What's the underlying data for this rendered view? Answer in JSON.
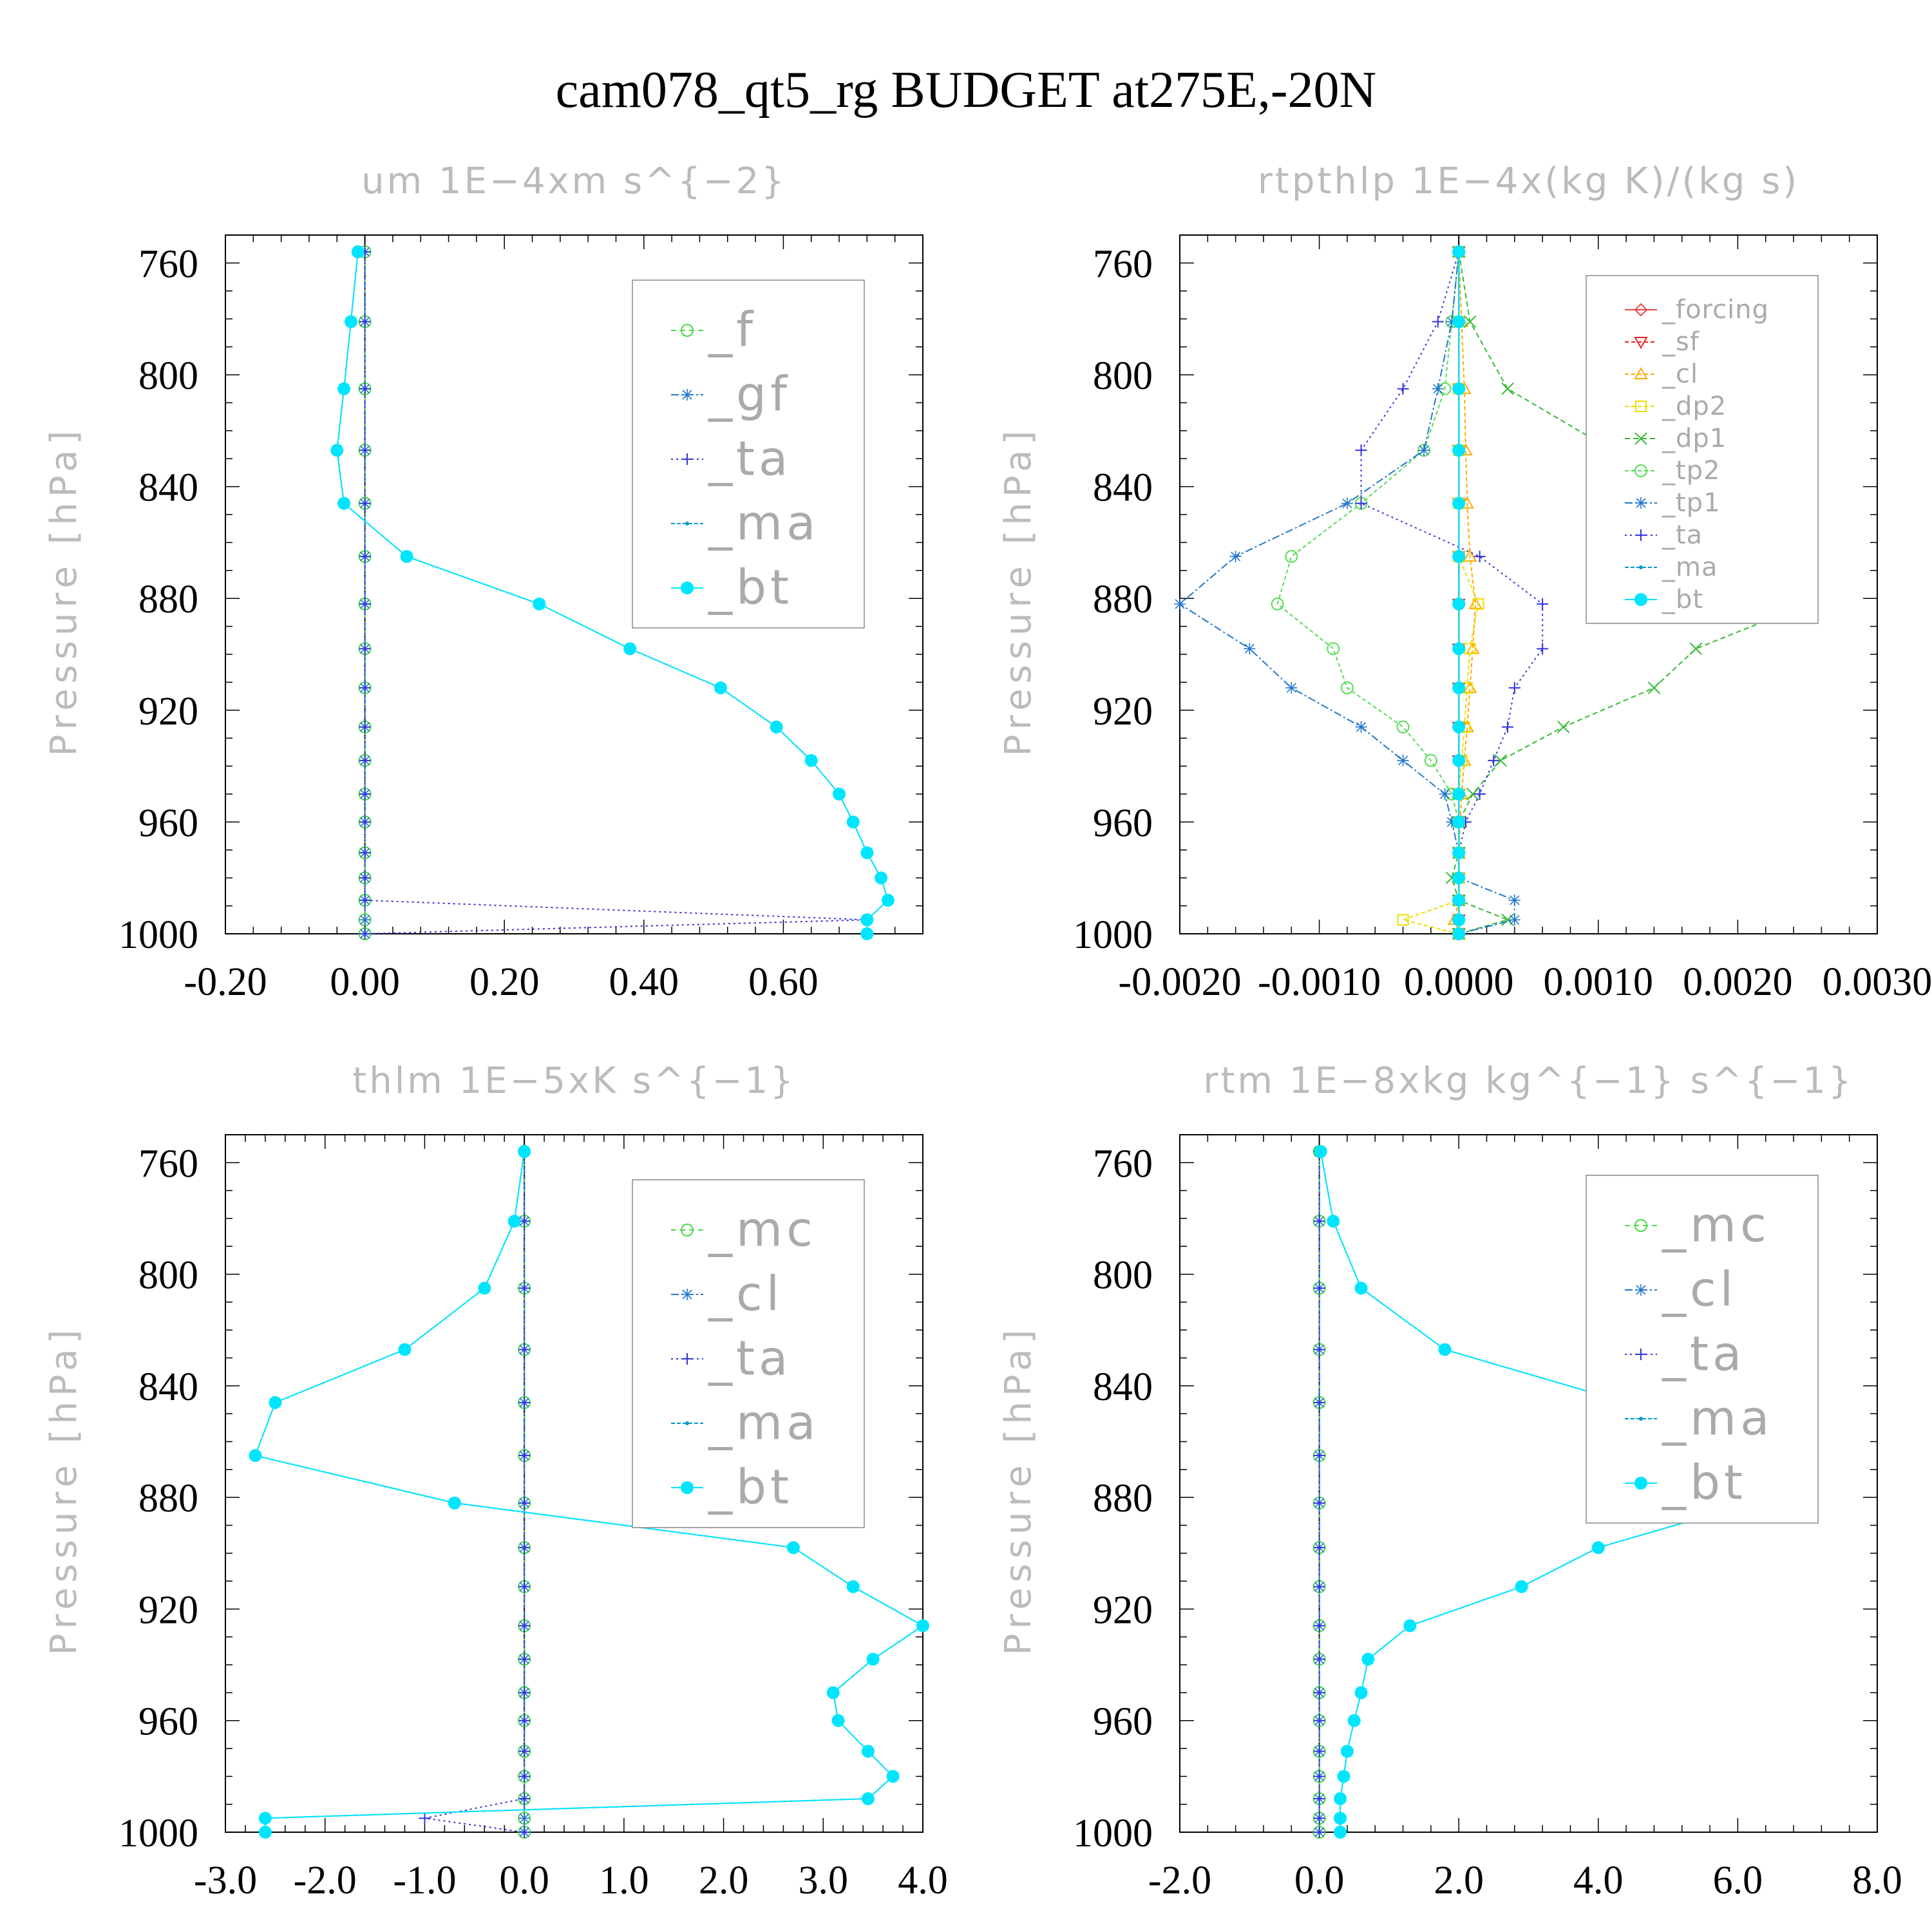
{
  "title": "cam078_qt5_rg  BUDGET at275E,-20N",
  "colors": {
    "_f": "#44dd44",
    "_gf": "#2277cc",
    "_ta": "#3333dd",
    "_ma": "#0099cc",
    "_bt": "#00e5ff",
    "_mc": "#44dd44",
    "_cl_thlm": "#2277cc",
    "_forcing": "#ee4444",
    "_sf": "#ee2222",
    "_cl": "#ffaa00",
    "_dp2": "#eedd00",
    "_dp1": "#33bb33",
    "_tp2": "#55dd55",
    "_tp1": "#2277cc",
    "axis": "#000000",
    "faint_label": "#bbbbbb",
    "legend_text": "#aaaaaa"
  },
  "chart_data": [
    {
      "type": "line",
      "title": "um  1E−4xm s^{−2}",
      "ylabel": "Pressure [hPa]",
      "xlabel": "",
      "xlim": [
        -0.2,
        0.8
      ],
      "ylim": [
        1000,
        750
      ],
      "yticks": [
        760,
        800,
        840,
        880,
        920,
        960,
        1000
      ],
      "ytick_labels": [
        "760",
        "800",
        "840",
        "880",
        "920",
        "960",
        "1000"
      ],
      "xticks": [
        -0.2,
        0.0,
        0.2,
        0.4,
        0.6
      ],
      "xtick_labels": [
        "-0.20",
        "0.00",
        "0.20",
        "0.40",
        "0.60"
      ],
      "legend": {
        "placement": "top-right",
        "font_size": "large",
        "entries": [
          "_f",
          "_gf",
          "_ta",
          "_ma",
          "_bt"
        ]
      },
      "y": [
        756,
        781,
        805,
        827,
        846,
        865,
        882,
        898,
        912,
        926,
        938,
        950,
        960,
        971,
        980,
        988,
        995,
        1000
      ],
      "series": [
        {
          "name": "_f",
          "marker": "circle",
          "dash": "8,6",
          "values": [
            0,
            0,
            0,
            0,
            0,
            0,
            0,
            0,
            0,
            0,
            0,
            0,
            0,
            0,
            0,
            0,
            0,
            0
          ]
        },
        {
          "name": "_gf",
          "marker": "star",
          "dash": "12,4,3,4",
          "values": [
            0,
            0,
            0,
            0,
            0,
            0,
            0,
            0,
            0,
            0,
            0,
            0,
            0,
            0,
            0,
            0,
            0,
            0
          ]
        },
        {
          "name": "_ta",
          "marker": "plus",
          "dash": "3,5",
          "values": [
            0,
            0,
            0,
            0,
            0,
            0,
            0,
            0,
            0,
            0,
            0,
            0,
            0,
            0,
            0,
            0,
            0.72,
            0
          ]
        },
        {
          "name": "_ma",
          "marker": "dot",
          "dash": "6,3",
          "values": [
            -0.01,
            -0.02,
            -0.03,
            -0.04,
            -0.03,
            0.06,
            0.25,
            0.38,
            0.51,
            0.59,
            0.64,
            0.68,
            0.7,
            0.72,
            0.74,
            0.75,
            0.72,
            0.72
          ]
        },
        {
          "name": "_bt",
          "marker": "filled",
          "dash": "",
          "values": [
            -0.01,
            -0.02,
            -0.03,
            -0.04,
            -0.03,
            0.06,
            0.25,
            0.38,
            0.51,
            0.59,
            0.64,
            0.68,
            0.7,
            0.72,
            0.74,
            0.75,
            0.72,
            0.72
          ]
        }
      ]
    },
    {
      "type": "line",
      "title": "rtpthlp  1E−4x(kg K)/(kg s)",
      "ylabel": "Pressure [hPa]",
      "xlabel": "",
      "xlim": [
        -0.002,
        0.003
      ],
      "ylim": [
        1000,
        750
      ],
      "yticks": [
        760,
        800,
        840,
        880,
        920,
        960,
        1000
      ],
      "ytick_labels": [
        "760",
        "800",
        "840",
        "880",
        "920",
        "960",
        "1000"
      ],
      "xticks": [
        -0.002,
        -0.001,
        0.0,
        0.001,
        0.002,
        0.003
      ],
      "xtick_labels": [
        "-0.0020",
        "-0.0010",
        "0.0000",
        "0.0010",
        "0.0020",
        "0.0030"
      ],
      "legend": {
        "placement": "top-right",
        "font_size": "small",
        "entries": [
          "_forcing",
          "_sf",
          "_cl",
          "_dp2",
          "_dp1",
          "_tp2",
          "_tp1",
          "_ta",
          "_ma",
          "_bt"
        ]
      },
      "y": [
        756,
        781,
        805,
        827,
        846,
        865,
        882,
        898,
        912,
        926,
        938,
        950,
        960,
        971,
        980,
        988,
        995,
        1000
      ],
      "series": [
        {
          "name": "_forcing",
          "marker": "diamond",
          "dash": "",
          "values": [
            0,
            0,
            0,
            0,
            0,
            0,
            0,
            0,
            0,
            0,
            0,
            0,
            0,
            0,
            0,
            0,
            0,
            0
          ]
        },
        {
          "name": "_sf",
          "marker": "tri-down",
          "dash": "6,4",
          "values": [
            0,
            0,
            0,
            0,
            0,
            0,
            0,
            0,
            0,
            0,
            0,
            0,
            0,
            0,
            0,
            0,
            0,
            0
          ]
        },
        {
          "name": "_cl",
          "marker": "tri-up",
          "dash": "6,4",
          "values": [
            0,
            2e-05,
            4e-05,
            5e-05,
            6e-05,
            8e-05,
            0.00012,
            0.0001,
            8e-05,
            6e-05,
            4e-05,
            2e-05,
            1e-05,
            0,
            0,
            0,
            -3e-05,
            0
          ]
        },
        {
          "name": "_dp2",
          "marker": "square",
          "dash": "6,4",
          "values": [
            0,
            0,
            0,
            0,
            0,
            0,
            0.00014,
            8e-05,
            6e-05,
            4e-05,
            2e-05,
            0,
            0,
            0,
            0,
            0,
            -0.0004,
            0
          ]
        },
        {
          "name": "_dp1",
          "marker": "x",
          "dash": "8,5",
          "values": [
            0,
            8e-05,
            0.00035,
            0.0011,
            0.0019,
            0.0025,
            0.0025,
            0.0017,
            0.0014,
            0.00075,
            0.0003,
            0.0001,
            0,
            0,
            -5e-05,
            0,
            0.00035,
            0
          ]
        },
        {
          "name": "_tp2",
          "marker": "circle",
          "dash": "6,4",
          "values": [
            0,
            -5e-05,
            -0.0001,
            -0.00025,
            -0.0007,
            -0.0012,
            -0.0013,
            -0.0009,
            -0.0008,
            -0.0004,
            -0.0002,
            -5e-05,
            0,
            0,
            0,
            0,
            0,
            0
          ]
        },
        {
          "name": "_tp1",
          "marker": "star",
          "dash": "12,4,3,4",
          "values": [
            0,
            -5e-05,
            -0.00015,
            -0.00025,
            -0.0008,
            -0.0016,
            -0.002,
            -0.0015,
            -0.0012,
            -0.0007,
            -0.0004,
            -0.0001,
            -5e-05,
            0,
            0,
            0.0004,
            0.0004,
            0
          ]
        },
        {
          "name": "_ta",
          "marker": "plus",
          "dash": "3,5",
          "values": [
            0,
            -0.00015,
            -0.0004,
            -0.0007,
            -0.0007,
            0.00015,
            0.0006,
            0.0006,
            0.0004,
            0.00035,
            0.00025,
            0.00015,
            5e-05,
            0,
            0,
            0,
            0,
            0
          ]
        },
        {
          "name": "_ma",
          "marker": "dot",
          "dash": "6,3",
          "values": [
            0,
            0,
            0,
            0,
            0,
            0,
            0,
            0,
            0,
            0,
            0,
            0,
            0,
            0,
            0,
            0,
            0,
            0
          ]
        },
        {
          "name": "_bt",
          "marker": "filled",
          "dash": "",
          "values": [
            0,
            0,
            0,
            0,
            0,
            0,
            0,
            0,
            0,
            0,
            0,
            0,
            0,
            0,
            0,
            0,
            0,
            0
          ]
        }
      ]
    },
    {
      "type": "line",
      "title": "thlm  1E−5xK s^{−1}",
      "ylabel": "Pressure [hPa]",
      "xlabel": "",
      "xlim": [
        -3.0,
        4.0
      ],
      "ylim": [
        1000,
        750
      ],
      "yticks": [
        760,
        800,
        840,
        880,
        920,
        960,
        1000
      ],
      "ytick_labels": [
        "760",
        "800",
        "840",
        "880",
        "920",
        "960",
        "1000"
      ],
      "xticks": [
        -3.0,
        -2.0,
        -1.0,
        0.0,
        1.0,
        2.0,
        3.0,
        4.0
      ],
      "xtick_labels": [
        "-3.0",
        "-2.0",
        "-1.0",
        "0.0",
        "1.0",
        "2.0",
        "3.0",
        "4.0"
      ],
      "legend": {
        "placement": "top-right",
        "font_size": "large",
        "entries": [
          "_mc",
          "_cl",
          "_ta",
          "_ma",
          "_bt"
        ]
      },
      "y": [
        756,
        781,
        805,
        827,
        846,
        865,
        882,
        898,
        912,
        926,
        938,
        950,
        960,
        971,
        980,
        988,
        995,
        1000
      ],
      "series": [
        {
          "name": "_mc",
          "marker": "circle",
          "dash": "8,6",
          "values": [
            0,
            0,
            0,
            0,
            0,
            0,
            0,
            0,
            0,
            0,
            0,
            0,
            0,
            0,
            0,
            0,
            0,
            0
          ]
        },
        {
          "name": "_cl",
          "marker": "star",
          "dash": "12,4,3,4",
          "values": [
            0,
            0,
            0,
            0,
            0,
            0,
            0,
            0,
            0,
            0,
            0,
            0,
            0,
            0,
            0,
            0,
            0,
            0
          ]
        },
        {
          "name": "_ta",
          "marker": "plus",
          "dash": "3,5",
          "values": [
            0,
            0,
            0,
            0,
            0,
            0,
            0,
            0,
            0,
            0,
            0,
            0,
            0,
            0,
            0,
            0,
            -1.0,
            0
          ]
        },
        {
          "name": "_ma",
          "marker": "dot",
          "dash": "6,3",
          "values": [
            0,
            -0.1,
            -0.4,
            -1.2,
            -2.5,
            -2.7,
            -0.7,
            2.7,
            3.3,
            4.0,
            3.5,
            3.1,
            3.15,
            3.45,
            3.7,
            3.45,
            -2.6,
            -2.6
          ]
        },
        {
          "name": "_bt",
          "marker": "filled",
          "dash": "",
          "values": [
            0,
            -0.1,
            -0.4,
            -1.2,
            -2.5,
            -2.7,
            -0.7,
            2.7,
            3.3,
            4.0,
            3.5,
            3.1,
            3.15,
            3.45,
            3.7,
            3.45,
            -2.6,
            -2.6
          ]
        }
      ]
    },
    {
      "type": "line",
      "title": "rtm  1E−8xkg kg^{−1} s^{−1}",
      "ylabel": "Pressure [hPa]",
      "xlabel": "",
      "xlim": [
        -2.0,
        8.0
      ],
      "ylim": [
        1000,
        750
      ],
      "yticks": [
        760,
        800,
        840,
        880,
        920,
        960,
        1000
      ],
      "ytick_labels": [
        "760",
        "800",
        "840",
        "880",
        "920",
        "960",
        "1000"
      ],
      "xticks": [
        -2.0,
        0.0,
        2.0,
        4.0,
        6.0,
        8.0
      ],
      "xtick_labels": [
        "-2.0",
        "0.0",
        "2.0",
        "4.0",
        "6.0",
        "8.0"
      ],
      "legend": {
        "placement": "top-right",
        "font_size": "large",
        "entries": [
          "_mc",
          "_cl",
          "_ta",
          "_ma",
          "_bt"
        ]
      },
      "y": [
        756,
        781,
        805,
        827,
        846,
        865,
        882,
        898,
        912,
        926,
        938,
        950,
        960,
        971,
        980,
        988,
        995,
        1000
      ],
      "series": [
        {
          "name": "_mc",
          "marker": "circle",
          "dash": "8,6",
          "values": [
            0,
            0,
            0,
            0,
            0,
            0,
            0,
            0,
            0,
            0,
            0,
            0,
            0,
            0,
            0,
            0,
            0,
            0
          ]
        },
        {
          "name": "_cl",
          "marker": "star",
          "dash": "12,4,3,4",
          "values": [
            0,
            0,
            0,
            0,
            0,
            0,
            0,
            0,
            0,
            0,
            0,
            0,
            0,
            0,
            0,
            0,
            0,
            0
          ]
        },
        {
          "name": "_ta",
          "marker": "plus",
          "dash": "3,5",
          "values": [
            0,
            0,
            0,
            0,
            0,
            0,
            0,
            0,
            0,
            0,
            0,
            0,
            0,
            0,
            0,
            0,
            0,
            0
          ]
        },
        {
          "name": "_ma",
          "marker": "dot",
          "dash": "6,3",
          "values": [
            0.02,
            0.2,
            0.6,
            1.8,
            4.4,
            6.0,
            6.2,
            4.0,
            2.9,
            1.3,
            0.7,
            0.6,
            0.5,
            0.4,
            0.35,
            0.3,
            0.3,
            0.3
          ]
        },
        {
          "name": "_bt",
          "marker": "filled",
          "dash": "",
          "values": [
            0.02,
            0.2,
            0.6,
            1.8,
            4.4,
            6.0,
            6.2,
            4.0,
            2.9,
            1.3,
            0.7,
            0.6,
            0.5,
            0.4,
            0.35,
            0.3,
            0.3,
            0.3
          ]
        }
      ]
    }
  ]
}
